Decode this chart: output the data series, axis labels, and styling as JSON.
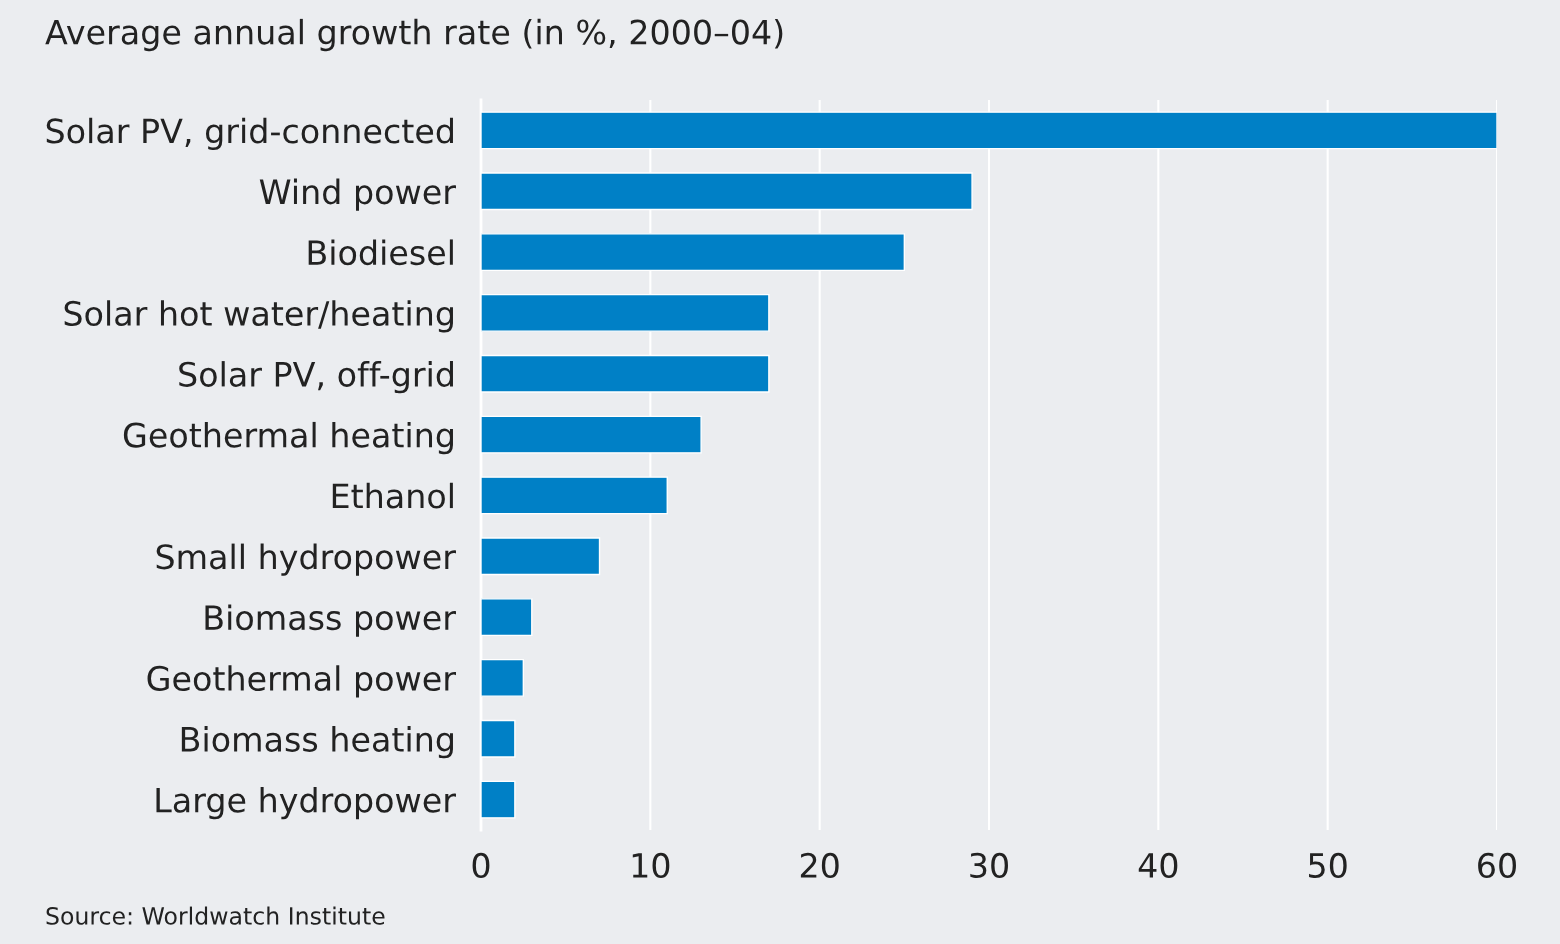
{
  "chart_data": {
    "type": "bar",
    "orientation": "horizontal",
    "title": "Average annual growth rate (in %, 2000–04)",
    "categories": [
      "Solar PV, grid-connected",
      "Wind power",
      "Biodiesel",
      "Solar hot water/heating",
      "Solar PV, off-grid",
      "Geothermal heating",
      "Ethanol",
      "Small hydropower",
      "Biomass power",
      "Geothermal power",
      "Biomass heating",
      "Large hydropower"
    ],
    "values": [
      60,
      29,
      25,
      17,
      17,
      13,
      11,
      7,
      3,
      2.5,
      2,
      2
    ],
    "color": "#0080c6",
    "xlim": [
      0,
      60
    ],
    "xticks": [
      0,
      10,
      20,
      30,
      40,
      50,
      60
    ],
    "grid": "x",
    "legend": false,
    "annotations": [
      "Source: Worldwatch Institute"
    ]
  }
}
